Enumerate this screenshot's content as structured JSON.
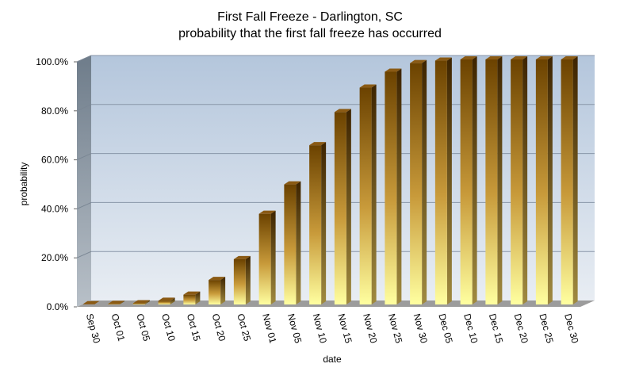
{
  "chart_data": {
    "type": "bar",
    "title": "First Fall Freeze  - Darlington,  SC",
    "subtitle": "probability  that  the  first  fall  freeze  has  occurred",
    "xlabel": "date",
    "ylabel": "probability",
    "ylim": [
      0,
      100
    ],
    "y_ticks": [
      "0.0%",
      "20.0%",
      "40.0%",
      "60.0%",
      "80.0%",
      "100.0%"
    ],
    "y_tick_values": [
      0,
      20,
      40,
      60,
      80,
      100
    ],
    "grid": true,
    "categories": [
      "Sep 30",
      "Oct 01",
      "Oct 05",
      "Oct 10",
      "Oct 15",
      "Oct 20",
      "Oct 25",
      "Nov 01",
      "Nov 05",
      "Nov 10",
      "Nov 15",
      "Nov 20",
      "Nov 25",
      "Nov 30",
      "Dec 05",
      "Dec 10",
      "Dec 15",
      "Dec 20",
      "Dec 25",
      "Dec 30"
    ],
    "values": [
      0.1,
      0.2,
      0.5,
      1.5,
      4,
      10,
      18.5,
      37,
      49,
      65,
      78.5,
      88.5,
      95,
      98.5,
      99.5,
      100,
      100,
      100,
      100,
      100
    ],
    "colors": {
      "bar_top": "#6b4200",
      "bar_bottom": "#ffff9a",
      "plot_bg_top": "#b4c6dc",
      "plot_bg_bottom": "#e6ecf2",
      "side_wall": "#8a96a2",
      "floor": "#9a9a9a"
    }
  }
}
